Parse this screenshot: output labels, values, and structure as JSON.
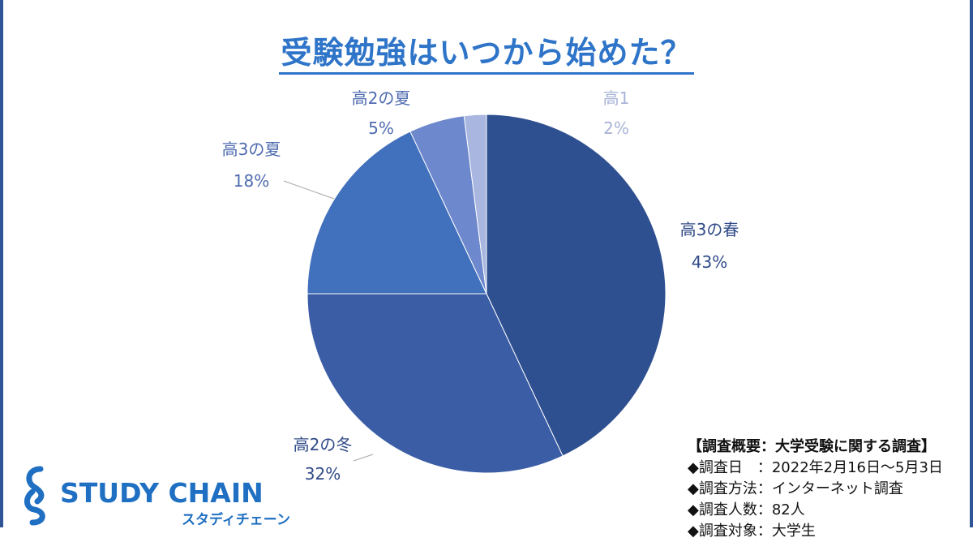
{
  "title": "受験勉強はいつから始めた？",
  "chart_data": {
    "type": "pie",
    "title": "受験勉強はいつから始めた？",
    "start_angle_deg": 0,
    "direction": "clockwise",
    "slices": [
      {
        "label": "高3の春",
        "percent_label": "43%",
        "value": 43,
        "color": "#2f5090"
      },
      {
        "label": "高2の冬",
        "percent_label": "32%",
        "value": 32,
        "color": "#3a5da6"
      },
      {
        "label": "高3の夏",
        "percent_label": "18%",
        "value": 18,
        "color": "#4170bd"
      },
      {
        "label": "高2の夏",
        "percent_label": "5%",
        "value": 5,
        "color": "#6d88cc"
      },
      {
        "label": "高1",
        "percent_label": "2%",
        "value": 2,
        "color": "#a8b6e0"
      }
    ]
  },
  "logo": {
    "name": "STUDY CHAIN",
    "sub": "スタディチェーン",
    "color": "#1f6fc2"
  },
  "summary": {
    "heading": "【調査概要：大学受験に関する調査】",
    "lines": [
      "◆調査日　：2022年2月16日～5月3日",
      "◆調査方法：インターネット調査",
      "◆調査人数：82人",
      "◆調査対象：大学生"
    ]
  }
}
